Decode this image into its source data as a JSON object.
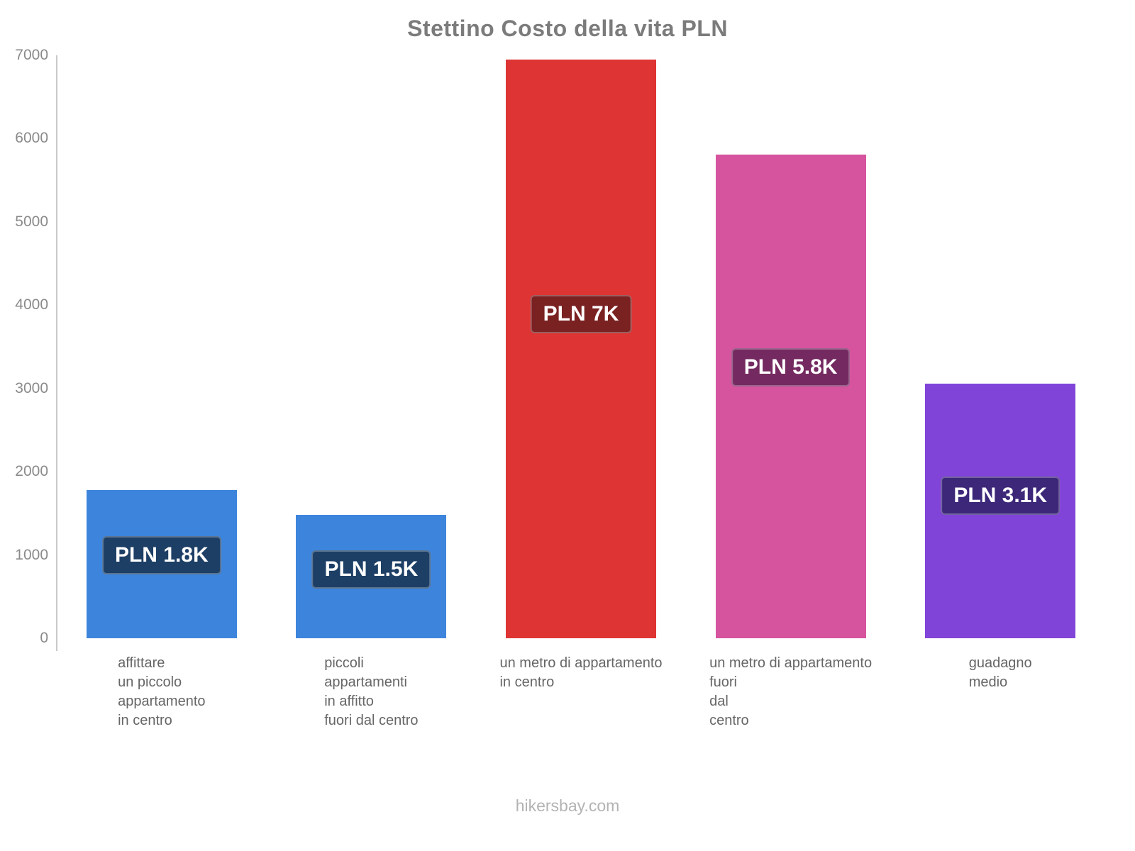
{
  "title": "Stettino Costo della vita PLN",
  "footer": "hikersbay.com",
  "chart_data": {
    "type": "bar",
    "title": "Stettino Costo della vita PLN",
    "unit": "PLN",
    "categories": [
      "affittare\nun piccolo\nappartamento\nin centro",
      "piccoli\nappartamenti\nin affitto\nfuori dal centro",
      "un metro di appartamento\nin centro",
      "un metro di appartamento\nfuori\ndal\ncentro",
      "guadagno\nmedio"
    ],
    "values": [
      1780,
      1480,
      6950,
      5810,
      3060
    ],
    "bar_labels": [
      "PLN 1.8K",
      "PLN 1.5K",
      "PLN 7K",
      "PLN 5.8K",
      "PLN 3.1K"
    ],
    "bar_colors": [
      "#3d85dc",
      "#3d85dc",
      "#de3434",
      "#d6539e",
      "#8144d8"
    ],
    "label_bg_colors": [
      "#1d3f66",
      "#1d3f66",
      "#7a2121",
      "#742a60",
      "#3c2779"
    ],
    "xlabel": "",
    "ylabel": "",
    "ylim": [
      0,
      7000
    ],
    "ytick_step": 1000,
    "grid": false,
    "legend": false
  }
}
